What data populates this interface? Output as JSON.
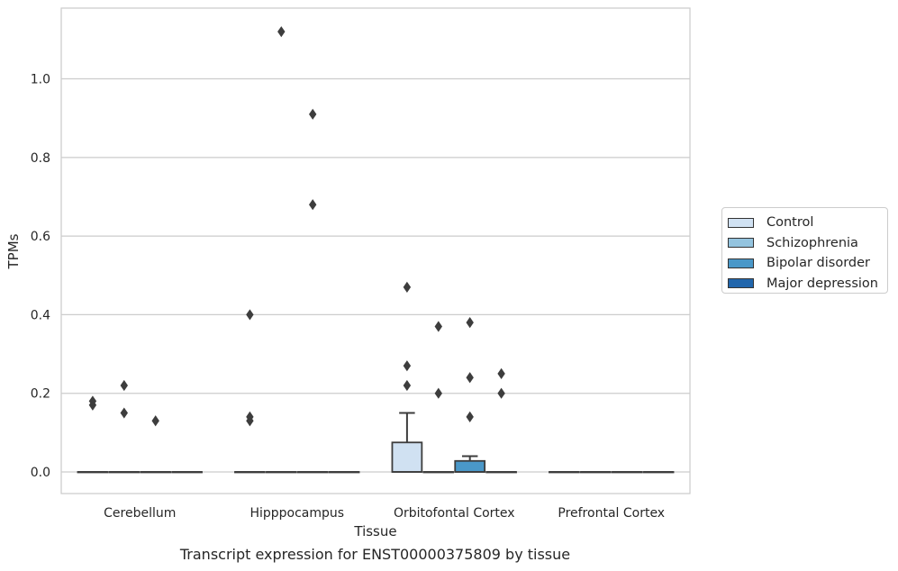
{
  "chart_data": {
    "type": "box",
    "xlabel": "Tissue",
    "ylabel": "TPMs",
    "caption": "Transcript expression for ENST00000375809 by tissue",
    "categories": [
      "Cerebellum",
      "Hipppocampus",
      "Orbitofontal Cortex",
      "Prefrontal Cortex"
    ],
    "ylim": [
      -0.055,
      1.18
    ],
    "yticks": [
      "0.0",
      "0.2",
      "0.4",
      "0.6",
      "0.8",
      "1.0"
    ],
    "grid": "horizontal",
    "legend_position": "right",
    "series": [
      {
        "name": "Control",
        "color": "#d0e1f2",
        "boxes": [
          {
            "q1": 0,
            "median": 0,
            "q3": 0,
            "whisker_low": 0,
            "whisker_high": 0,
            "outliers": [
              0.17,
              0.18
            ]
          },
          {
            "q1": 0,
            "median": 0,
            "q3": 0,
            "whisker_low": 0,
            "whisker_high": 0,
            "outliers": [
              0.4,
              0.13,
              0.14
            ]
          },
          {
            "q1": 0,
            "median": 0,
            "q3": 0.075,
            "whisker_low": 0,
            "whisker_high": 0.15,
            "outliers": [
              0.47,
              0.27,
              0.22
            ]
          },
          {
            "q1": 0,
            "median": 0,
            "q3": 0,
            "whisker_low": 0,
            "whisker_high": 0,
            "outliers": []
          }
        ]
      },
      {
        "name": "Schizophrenia",
        "color": "#94c4df",
        "boxes": [
          {
            "q1": 0,
            "median": 0,
            "q3": 0,
            "whisker_low": 0,
            "whisker_high": 0,
            "outliers": [
              0.22,
              0.15
            ]
          },
          {
            "q1": 0,
            "median": 0,
            "q3": 0,
            "whisker_low": 0,
            "whisker_high": 0,
            "outliers": [
              1.12
            ]
          },
          {
            "q1": 0,
            "median": 0,
            "q3": 0,
            "whisker_low": 0,
            "whisker_high": 0,
            "outliers": [
              0.37,
              0.2
            ]
          },
          {
            "q1": 0,
            "median": 0,
            "q3": 0,
            "whisker_low": 0,
            "whisker_high": 0,
            "outliers": []
          }
        ]
      },
      {
        "name": "Bipolar disorder",
        "color": "#4a98c9",
        "boxes": [
          {
            "q1": 0,
            "median": 0,
            "q3": 0,
            "whisker_low": 0,
            "whisker_high": 0,
            "outliers": [
              0.13
            ]
          },
          {
            "q1": 0,
            "median": 0,
            "q3": 0,
            "whisker_low": 0,
            "whisker_high": 0,
            "outliers": [
              0.91,
              0.68
            ]
          },
          {
            "q1": 0,
            "median": 0,
            "q3": 0.028,
            "whisker_low": 0,
            "whisker_high": 0.04,
            "outliers": [
              0.38,
              0.24,
              0.14
            ]
          },
          {
            "q1": 0,
            "median": 0,
            "q3": 0,
            "whisker_low": 0,
            "whisker_high": 0,
            "outliers": []
          }
        ]
      },
      {
        "name": "Major depression",
        "color": "#2166ac",
        "boxes": [
          {
            "q1": 0,
            "median": 0,
            "q3": 0,
            "whisker_low": 0,
            "whisker_high": 0,
            "outliers": []
          },
          {
            "q1": 0,
            "median": 0,
            "q3": 0,
            "whisker_low": 0,
            "whisker_high": 0,
            "outliers": []
          },
          {
            "q1": 0,
            "median": 0,
            "q3": 0,
            "whisker_low": 0,
            "whisker_high": 0,
            "outliers": [
              0.25,
              0.2
            ]
          },
          {
            "q1": 0,
            "median": 0,
            "q3": 0,
            "whisker_low": 0,
            "whisker_high": 0,
            "outliers": []
          }
        ]
      }
    ]
  }
}
